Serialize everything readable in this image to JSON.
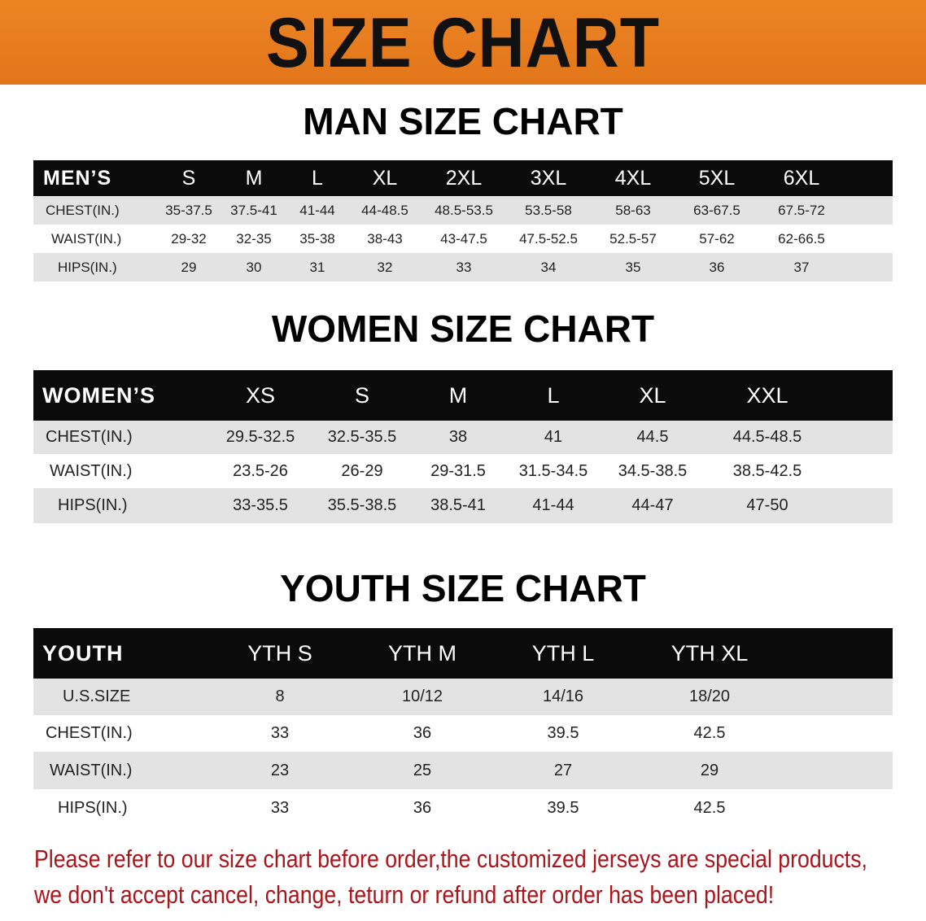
{
  "title": "SIZE CHART",
  "colors": {
    "banner": "#e87c1e",
    "header_row": "#0b0b0b",
    "stripe": "#e3e3e3",
    "note": "#a8161b"
  },
  "men": {
    "heading": "MAN SIZE CHART",
    "header": [
      "MEN’S",
      "S",
      "M",
      "L",
      "XL",
      "2XL",
      "3XL",
      "4XL",
      "5XL",
      "6XL"
    ],
    "rows": [
      [
        "CHEST(IN.)",
        "35-37.5",
        "37.5-41",
        "41-44",
        "44-48.5",
        "48.5-53.5",
        "53.5-58",
        "58-63",
        "63-67.5",
        "67.5-72"
      ],
      [
        "WAIST(IN.)",
        "29-32",
        "32-35",
        "35-38",
        "38-43",
        "43-47.5",
        "47.5-52.5",
        "52.5-57",
        "57-62",
        "62-66.5"
      ],
      [
        "HIPS(IN.)",
        "29",
        "30",
        "31",
        "32",
        "33",
        "34",
        "35",
        "36",
        "37"
      ]
    ]
  },
  "women": {
    "heading": "WOMEN SIZE CHART",
    "header": [
      "WOMEN’S",
      "XS",
      "S",
      "M",
      "L",
      "XL",
      "XXL"
    ],
    "rows": [
      [
        "CHEST(IN.)",
        "29.5-32.5",
        "32.5-35.5",
        "38",
        "41",
        "44.5",
        "44.5-48.5"
      ],
      [
        "WAIST(IN.)",
        "23.5-26",
        "26-29",
        "29-31.5",
        "31.5-34.5",
        "34.5-38.5",
        "38.5-42.5"
      ],
      [
        "HIPS(IN.)",
        "33-35.5",
        "35.5-38.5",
        "38.5-41",
        "41-44",
        "44-47",
        "47-50"
      ]
    ]
  },
  "youth": {
    "heading": "YOUTH SIZE CHART",
    "header": [
      "YOUTH",
      "YTH S",
      "YTH M",
      "YTH L",
      "YTH XL"
    ],
    "rows": [
      [
        "U.S.SIZE",
        "8",
        "10/12",
        "14/16",
        "18/20"
      ],
      [
        "CHEST(IN.)",
        "33",
        "36",
        "39.5",
        "42.5"
      ],
      [
        "WAIST(IN.)",
        "23",
        "25",
        "27",
        "29"
      ],
      [
        "HIPS(IN.)",
        "33",
        "36",
        "39.5",
        "42.5"
      ]
    ]
  },
  "note": {
    "line1": "Please refer to our size chart before order,the customized jerseys are special products,",
    "line2": "we don't accept cancel, change, teturn or refund after order has been placed!"
  }
}
